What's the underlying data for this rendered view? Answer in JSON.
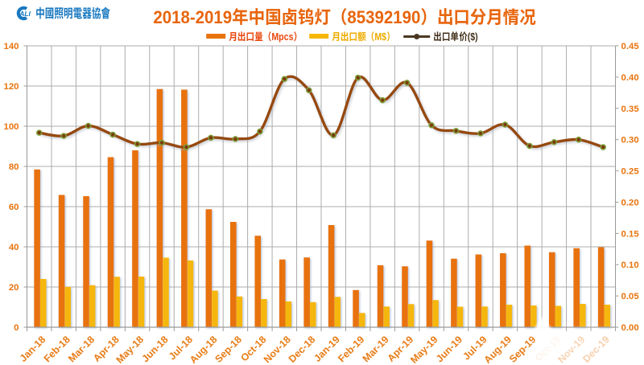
{
  "header": {
    "logo_abbr": "ALI",
    "logo_text": "中國照明電器協會",
    "title": "2018-2019年中国卤钨灯（85392190）出口分月情况"
  },
  "legend": [
    {
      "label": "月出口量（Mpcs）",
      "swatch": "bar",
      "color": "#E8720C",
      "text_color": "#E8480F"
    },
    {
      "label": "月出口额（M$）",
      "swatch": "bar",
      "color": "#F5B70A",
      "text_color": "#EFAC00"
    },
    {
      "label": "出口单价($)",
      "swatch": "line-dot",
      "color": "#4A3823",
      "text_color": "#42301B"
    }
  ],
  "chart_data": {
    "type": "combo-bar-line",
    "title": "2018-2019年中国卤钨灯（85392190）出口分月情况",
    "categories": [
      "Jan-18",
      "Feb-18",
      "Mar-18",
      "Apr-18",
      "May-18",
      "Jun-18",
      "Jul-18",
      "Aug-18",
      "Sep-18",
      "Oct-18",
      "Nov-18",
      "Dec-18",
      "Jan-19",
      "Feb-19",
      "Mar-19",
      "Apr-19",
      "May-19",
      "Jun-19",
      "Jul-19",
      "Aug-19",
      "Sep-19",
      "Oct-19",
      "Nov-19",
      "Dec-19"
    ],
    "series": [
      {
        "name": "月出口量（Mpcs）",
        "type": "bar",
        "axis": "left",
        "color": "#E8720C",
        "values": [
          78.5,
          65.8,
          65.2,
          84.6,
          88.0,
          118.5,
          118.2,
          58.7,
          52.4,
          45.5,
          33.7,
          34.7,
          50.8,
          18.5,
          30.8,
          30.3,
          43.1,
          34.1,
          36.2,
          36.8,
          40.6,
          37.3,
          39.3,
          39.8
        ]
      },
      {
        "name": "月出口额（M$）",
        "type": "bar",
        "axis": "left",
        "color": "#F5B70A",
        "values": [
          24.0,
          20.1,
          20.9,
          25.1,
          25.2,
          34.6,
          33.2,
          18.2,
          15.3,
          14.0,
          12.8,
          12.5,
          15.1,
          7.1,
          10.3,
          11.5,
          13.5,
          10.2,
          10.3,
          11.2,
          10.8,
          10.6,
          11.6,
          11.2
        ]
      },
      {
        "name": "出口单价($)",
        "type": "line",
        "axis": "right",
        "color": "#96490E",
        "smooth": true,
        "marker_fill": "#7A370D",
        "marker_ring": "#7E9C38",
        "values": [
          0.311,
          0.306,
          0.322,
          0.308,
          0.293,
          0.295,
          0.288,
          0.303,
          0.301,
          0.313,
          0.397,
          0.379,
          0.307,
          0.399,
          0.363,
          0.391,
          0.323,
          0.314,
          0.31,
          0.324,
          0.29,
          0.296,
          0.3,
          0.288
        ]
      }
    ],
    "left_axis": {
      "min": 0,
      "max": 140,
      "step": 20,
      "color": "#E8740E",
      "labels": [
        "0",
        "20",
        "40",
        "60",
        "80",
        "100",
        "120",
        "140"
      ]
    },
    "right_axis": {
      "min": 0,
      "max": 0.45,
      "step": 0.05,
      "color": "#E8740E",
      "labels": [
        "0.00",
        "0.05",
        "0.10",
        "0.15",
        "0.20",
        "0.25",
        "0.30",
        "0.35",
        "0.40",
        "0.45"
      ]
    },
    "x_axis": {
      "label_color": "#E87C17",
      "label_rotation": -45
    },
    "grid": true,
    "legend_position": "top"
  }
}
